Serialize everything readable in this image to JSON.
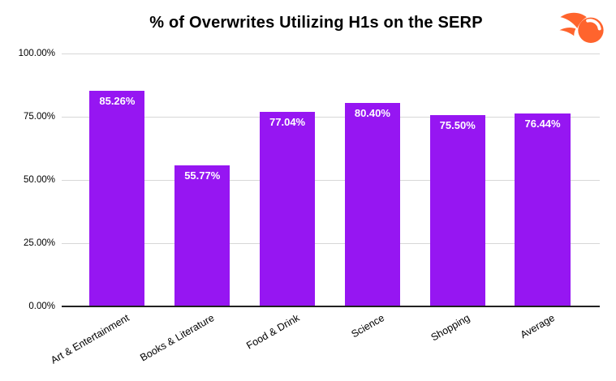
{
  "header": {
    "title": "% of Overwrites Utilizing H1s on the SERP",
    "logo": "semrush-logo",
    "logo_color": "#FF642D"
  },
  "chart_data": {
    "type": "bar",
    "title": "% of Overwrites Utilizing H1s on the SERP",
    "categories": [
      "Art & Entertainment",
      "Books & Literature",
      "Food & Drink",
      "Science",
      "Shopping",
      "Average"
    ],
    "values": [
      85.26,
      55.77,
      77.04,
      80.4,
      75.5,
      76.44
    ],
    "value_labels": [
      "85.26%",
      "55.77%",
      "77.04%",
      "80.40%",
      "75.50%",
      "76.44%"
    ],
    "y_ticks": [
      "100.00%",
      "75.00%",
      "50.00%",
      "25.00%",
      "0.00%"
    ],
    "ylim": [
      0,
      100
    ],
    "xlabel": "",
    "ylabel": "",
    "legend": "none",
    "grid": "on",
    "bar_color": "#9616F2",
    "grid_color": "#d7d7d7",
    "axis_color": "#212121",
    "bar_value_text_color": "#ffffff",
    "tick_text_color": "#000000"
  }
}
